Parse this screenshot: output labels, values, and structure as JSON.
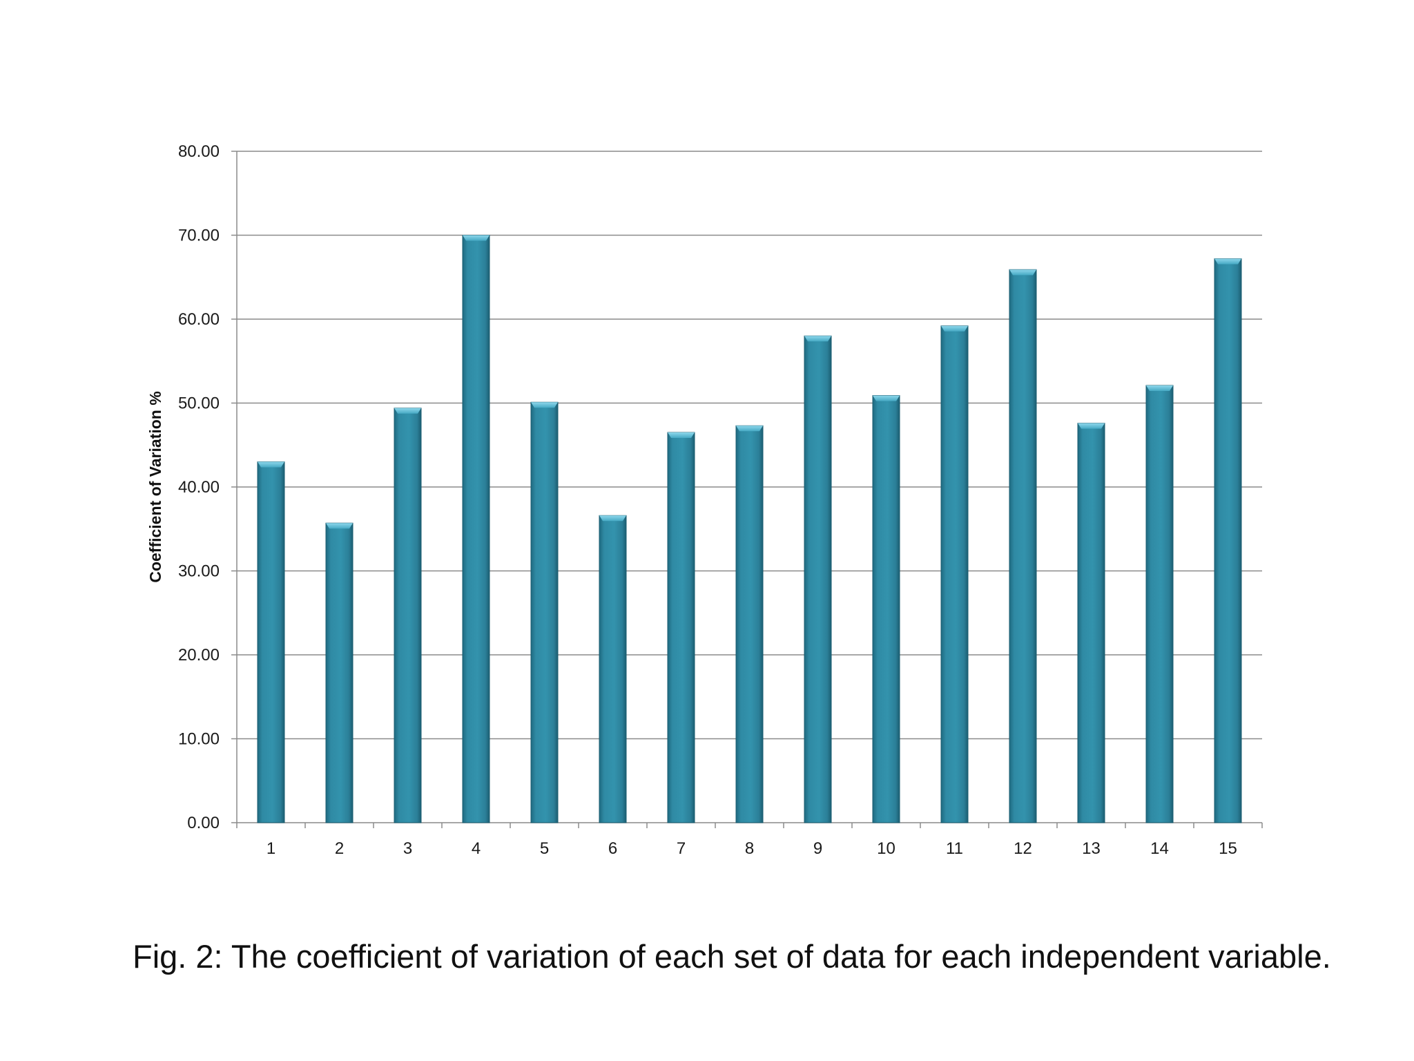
{
  "chart_data": {
    "type": "bar",
    "categories": [
      "1",
      "2",
      "3",
      "4",
      "5",
      "6",
      "7",
      "8",
      "9",
      "10",
      "11",
      "12",
      "13",
      "14",
      "15"
    ],
    "values": [
      43.0,
      35.7,
      49.4,
      70.0,
      50.1,
      36.6,
      46.5,
      47.3,
      58.0,
      50.9,
      59.2,
      65.9,
      47.6,
      52.1,
      67.2
    ],
    "title": "",
    "xlabel": "",
    "ylabel": "Coefficient of Variation %",
    "ylim": [
      0,
      80
    ],
    "yticks": [
      "0.00",
      "10.00",
      "20.00",
      "30.00",
      "40.00",
      "50.00",
      "60.00",
      "70.00",
      "80.00"
    ],
    "grid": true,
    "legend": "none",
    "bar_color": "#2f88a2"
  },
  "caption": "Fig. 2:  The coefficient of variation of each set of data for each independent variable."
}
